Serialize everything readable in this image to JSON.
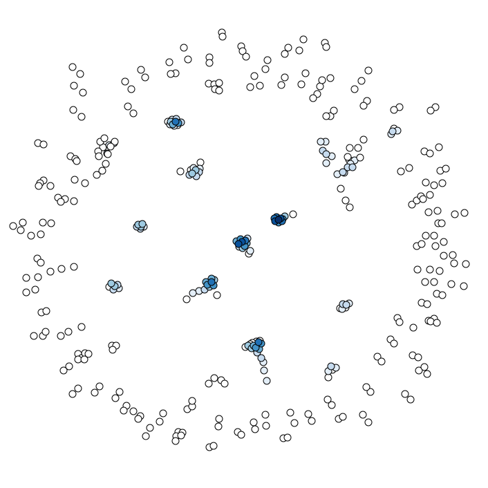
{
  "graph": {
    "type": "network-layout",
    "edges_visible": false,
    "node_outline_color": "#000000",
    "color_scale": {
      "0": "#ffffff",
      "1": "#e3eef8",
      "2": "#c6dbef",
      "3": "#9ecae1",
      "4": "#6baed6",
      "5": "#4292c6",
      "6": "#2171b5",
      "7": "#08519c",
      "8": "#08306b"
    },
    "clusters": [
      {
        "id": "c1",
        "intensity": [
          6,
          5,
          4,
          3,
          2,
          2,
          1,
          1,
          1,
          0,
          0
        ]
      },
      {
        "id": "c2",
        "intensity": [
          3,
          3,
          2,
          2,
          2,
          1,
          1,
          0,
          0,
          0
        ]
      },
      {
        "id": "c3",
        "intensity": [
          3,
          3,
          3,
          2,
          2,
          1
        ]
      },
      {
        "id": "c4",
        "intensity": [
          8,
          7,
          7,
          6,
          6,
          6,
          5,
          5,
          3,
          0
        ]
      },
      {
        "id": "c5",
        "intensity": [
          7,
          7,
          6,
          5,
          5,
          4,
          4,
          3,
          2,
          2,
          1,
          0
        ]
      },
      {
        "id": "c6",
        "intensity": [
          6,
          5,
          5,
          4,
          4,
          3,
          3,
          2,
          1,
          1,
          0,
          0
        ]
      },
      {
        "id": "c7",
        "intensity": [
          3,
          3,
          2,
          2,
          1,
          0
        ]
      },
      {
        "id": "c8",
        "intensity": [
          6,
          5,
          5,
          4,
          4,
          3,
          3,
          2,
          2,
          1,
          1,
          1,
          0,
          0,
          0,
          0,
          0
        ]
      },
      {
        "id": "c9",
        "intensity": [
          2,
          2,
          1,
          1,
          0,
          0
        ]
      },
      {
        "id": "c10",
        "intensity": [
          2,
          2,
          2,
          1,
          1,
          1,
          1,
          0
        ]
      },
      {
        "id": "c11",
        "intensity": [
          2,
          2,
          1,
          1,
          1,
          1,
          0,
          0,
          0,
          0,
          0,
          0,
          0,
          0,
          0,
          0,
          0,
          0,
          0,
          0
        ]
      },
      {
        "id": "c12",
        "intensity": [
          2,
          1,
          1,
          0
        ]
      },
      {
        "id": "c13",
        "intensity": [
          2,
          1,
          1,
          0,
          0
        ]
      },
      {
        "id": "c14",
        "intensity": [
          2,
          1,
          1,
          0,
          0,
          0
        ]
      },
      {
        "id": "ring",
        "intensity": [
          0
        ]
      }
    ]
  }
}
